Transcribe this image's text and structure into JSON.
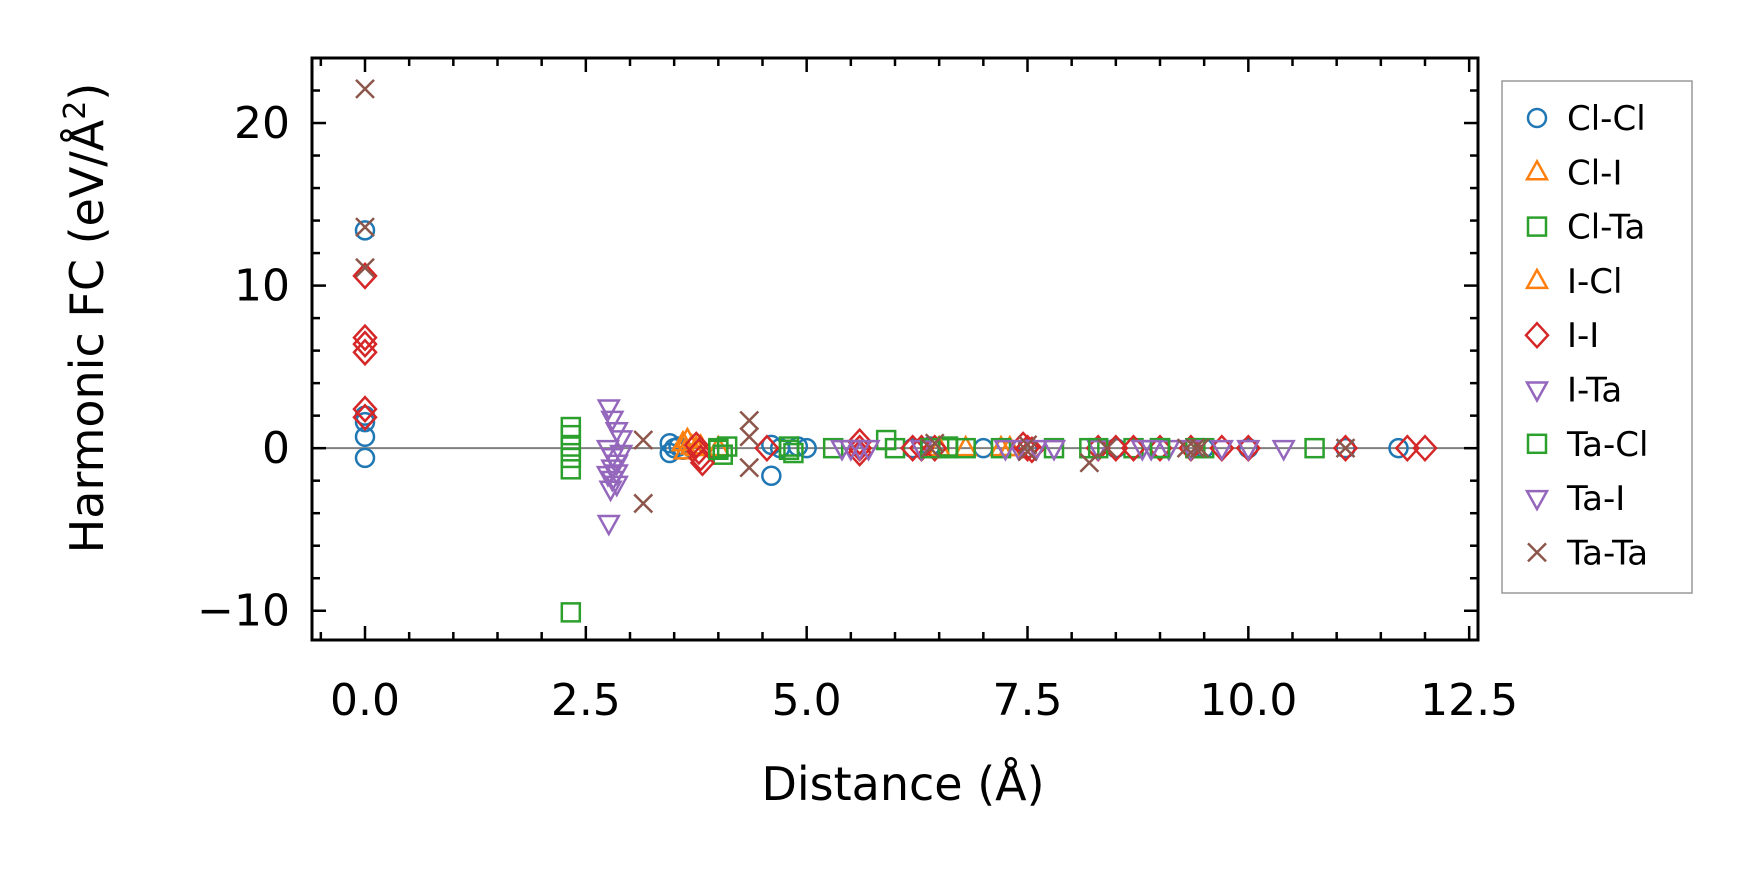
{
  "chart_data": {
    "type": "scatter",
    "title": "",
    "xlabel": "Distance (Å)",
    "ylabel": "Harmonic FC (eV/Å",
    "ylabel_sup": "2",
    "ylabel_close": ")",
    "xlim": [
      -0.6,
      12.6
    ],
    "ylim": [
      -11.8,
      24.0
    ],
    "xticks": [
      0.0,
      2.5,
      5.0,
      7.5,
      10.0,
      12.5
    ],
    "xtick_labels": [
      "0.0",
      "2.5",
      "5.0",
      "7.5",
      "10.0",
      "12.5"
    ],
    "yticks": [
      -10,
      0,
      10,
      20
    ],
    "ytick_labels": [
      "−10",
      "0",
      "10",
      "20"
    ],
    "x_minor_step": 0.5,
    "y_minor_step": 2,
    "zero_line": true,
    "legend_position": "right-outside",
    "series": [
      {
        "name": "Cl-Cl",
        "marker": "circle",
        "color": "#1f77b4",
        "points": [
          [
            0,
            13.4
          ],
          [
            0,
            2.0
          ],
          [
            0,
            1.6
          ],
          [
            0,
            0.7
          ],
          [
            0,
            -0.6
          ],
          [
            3.45,
            0.3
          ],
          [
            3.45,
            -0.3
          ],
          [
            3.5,
            0.0
          ],
          [
            3.55,
            0.1
          ],
          [
            3.6,
            -0.1
          ],
          [
            4.6,
            0.2
          ],
          [
            4.6,
            -1.7
          ],
          [
            4.7,
            0.0
          ],
          [
            4.9,
            0.1
          ],
          [
            5.0,
            0.0
          ],
          [
            6.2,
            0.0
          ],
          [
            6.4,
            0.1
          ],
          [
            7.0,
            0.0
          ],
          [
            7.5,
            0.0
          ],
          [
            8.5,
            0.0
          ],
          [
            9.0,
            0.0
          ],
          [
            9.5,
            0.0
          ],
          [
            10.0,
            0.0
          ],
          [
            11.1,
            0.0
          ],
          [
            11.7,
            0.0
          ]
        ]
      },
      {
        "name": "Cl-I",
        "marker": "triangle-up",
        "color": "#ff7f0e",
        "points": [
          [
            3.6,
            0.3
          ],
          [
            3.62,
            -0.2
          ],
          [
            3.7,
            0.1
          ],
          [
            3.75,
            0.0
          ],
          [
            4.0,
            0.0
          ],
          [
            6.8,
            0.0
          ],
          [
            7.3,
            0.0
          ]
        ]
      },
      {
        "name": "Cl-Ta",
        "marker": "square",
        "color": "#2ca02c",
        "points": [
          [
            2.33,
            1.3
          ],
          [
            2.33,
            0.8
          ],
          [
            2.33,
            0.1
          ],
          [
            2.33,
            -0.6
          ],
          [
            2.33,
            -1.3
          ],
          [
            2.33,
            -10.1
          ],
          [
            4.0,
            0.0
          ],
          [
            4.05,
            -0.4
          ],
          [
            4.8,
            0.1
          ],
          [
            4.85,
            -0.3
          ],
          [
            5.3,
            0.0
          ],
          [
            5.9,
            0.5
          ],
          [
            6.0,
            0.0
          ],
          [
            6.5,
            0.0
          ],
          [
            6.6,
            0.0
          ],
          [
            6.8,
            0.0
          ],
          [
            7.8,
            0.0
          ],
          [
            8.2,
            0.0
          ],
          [
            8.7,
            0.0
          ],
          [
            9.0,
            0.0
          ],
          [
            9.5,
            0.0
          ],
          [
            10.75,
            0.0
          ]
        ]
      },
      {
        "name": "I-Cl",
        "marker": "triangle-up",
        "color": "#ff7f0e",
        "points": [
          [
            3.65,
            0.5
          ],
          [
            3.8,
            0.1
          ],
          [
            6.5,
            0.0
          ],
          [
            7.2,
            0.0
          ]
        ]
      },
      {
        "name": "I-I",
        "marker": "diamond",
        "color": "#d62728",
        "points": [
          [
            0,
            10.6
          ],
          [
            0,
            6.8
          ],
          [
            0,
            6.4
          ],
          [
            0,
            5.9
          ],
          [
            0,
            2.4
          ],
          [
            0,
            1.9
          ],
          [
            3.75,
            0.2
          ],
          [
            3.78,
            -0.2
          ],
          [
            3.8,
            -0.6
          ],
          [
            3.82,
            -0.9
          ],
          [
            4.55,
            0.0
          ],
          [
            5.6,
            0.4
          ],
          [
            5.6,
            0.0
          ],
          [
            5.6,
            -0.3
          ],
          [
            6.2,
            0.0
          ],
          [
            6.3,
            0.0
          ],
          [
            6.45,
            0.0
          ],
          [
            7.45,
            0.2
          ],
          [
            7.5,
            0.0
          ],
          [
            7.55,
            -0.1
          ],
          [
            8.3,
            0.0
          ],
          [
            8.5,
            0.0
          ],
          [
            8.7,
            0.0
          ],
          [
            9.0,
            0.0
          ],
          [
            9.35,
            0.0
          ],
          [
            9.7,
            0.0
          ],
          [
            10.0,
            0.0
          ],
          [
            11.1,
            0.0
          ],
          [
            11.8,
            0.0
          ],
          [
            12.0,
            0.0
          ]
        ]
      },
      {
        "name": "I-Ta",
        "marker": "triangle-down",
        "color": "#9467bd",
        "points": [
          [
            2.76,
            2.5
          ],
          [
            2.8,
            1.8
          ],
          [
            2.85,
            1.1
          ],
          [
            2.9,
            0.6
          ],
          [
            2.75,
            0.0
          ],
          [
            2.8,
            -0.5
          ],
          [
            2.85,
            -0.9
          ],
          [
            2.8,
            -1.2
          ],
          [
            2.75,
            -1.6
          ],
          [
            2.8,
            -1.9
          ],
          [
            2.85,
            -2.2
          ],
          [
            2.78,
            -2.5
          ],
          [
            2.76,
            -4.6
          ],
          [
            5.4,
            0.0
          ],
          [
            5.7,
            0.0
          ],
          [
            6.3,
            0.0
          ],
          [
            7.4,
            0.0
          ],
          [
            7.8,
            0.0
          ],
          [
            8.3,
            0.0
          ],
          [
            8.8,
            0.0
          ],
          [
            9.1,
            0.0
          ],
          [
            9.7,
            0.0
          ],
          [
            10.4,
            0.0
          ]
        ]
      },
      {
        "name": "Ta-Cl",
        "marker": "square",
        "color": "#2ca02c",
        "points": [
          [
            4.0,
            -0.1
          ],
          [
            4.1,
            0.1
          ],
          [
            4.8,
            -0.1
          ],
          [
            6.4,
            0.0
          ],
          [
            6.6,
            0.1
          ],
          [
            7.2,
            0.0
          ],
          [
            8.3,
            0.0
          ],
          [
            9.0,
            0.0
          ],
          [
            9.4,
            0.0
          ]
        ]
      },
      {
        "name": "Ta-I",
        "marker": "triangle-down",
        "color": "#9467bd",
        "points": [
          [
            2.9,
            -0.3
          ],
          [
            2.85,
            -1.5
          ],
          [
            5.5,
            0.0
          ],
          [
            5.6,
            0.0
          ],
          [
            7.25,
            0.0
          ],
          [
            7.6,
            0.0
          ],
          [
            8.9,
            0.0
          ],
          [
            9.35,
            0.0
          ],
          [
            10.0,
            0.0
          ]
        ]
      },
      {
        "name": "Ta-Ta",
        "marker": "x",
        "color": "#8c564b",
        "points": [
          [
            0,
            22.1
          ],
          [
            0,
            13.6
          ],
          [
            0,
            11.1
          ],
          [
            3.15,
            0.5
          ],
          [
            3.15,
            -3.4
          ],
          [
            4.35,
            1.7
          ],
          [
            4.35,
            0.7
          ],
          [
            4.35,
            -1.2
          ],
          [
            6.4,
            0.0
          ],
          [
            6.45,
            0.3
          ],
          [
            7.5,
            0.2
          ],
          [
            7.5,
            -0.2
          ],
          [
            8.2,
            -0.9
          ],
          [
            8.4,
            0.0
          ],
          [
            9.3,
            0.0
          ],
          [
            9.4,
            0.0
          ],
          [
            9.45,
            0.0
          ],
          [
            11.1,
            0.0
          ]
        ]
      }
    ]
  }
}
